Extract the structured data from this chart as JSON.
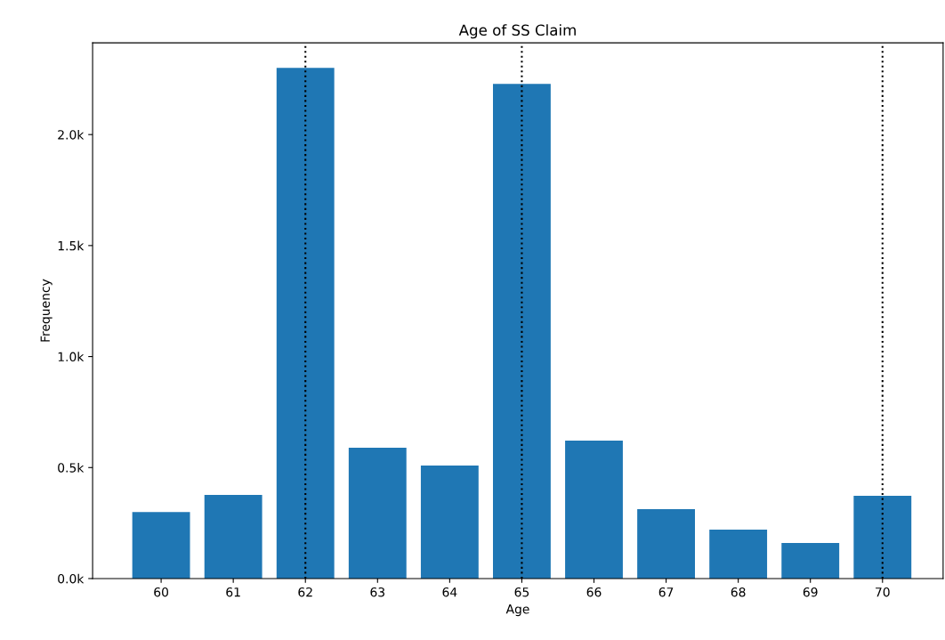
{
  "chart_data": {
    "type": "bar",
    "title": "Age of SS Claim",
    "xlabel": "Age",
    "ylabel": "Frequency",
    "x": [
      60,
      61,
      62,
      63,
      64,
      65,
      66,
      67,
      68,
      69,
      70
    ],
    "values": [
      300,
      377,
      2300,
      589,
      509,
      2228,
      621,
      313,
      220,
      160,
      373
    ],
    "color": "#1f77b4",
    "xlim": [
      59.05,
      70.84
    ],
    "xticks": [
      60,
      61,
      62,
      63,
      64,
      65,
      66,
      67,
      68,
      69,
      70
    ],
    "ylim": [
      0,
      2413
    ],
    "yticks": [
      {
        "value": 0,
        "label": "0.0k"
      },
      {
        "value": 500,
        "label": "0.5k"
      },
      {
        "value": 1000,
        "label": "1.0k"
      },
      {
        "value": 1500,
        "label": "1.5k"
      },
      {
        "value": 2000,
        "label": "2.0k"
      }
    ],
    "ref_lines": [
      {
        "axis": "x",
        "value": 62,
        "color": "#000000",
        "line_style": "dotted"
      },
      {
        "axis": "x",
        "value": 65,
        "color": "#000000",
        "line_style": "dotted"
      },
      {
        "axis": "x",
        "value": 70,
        "color": "#000000",
        "line_style": "dotted"
      }
    ],
    "grid": false
  }
}
